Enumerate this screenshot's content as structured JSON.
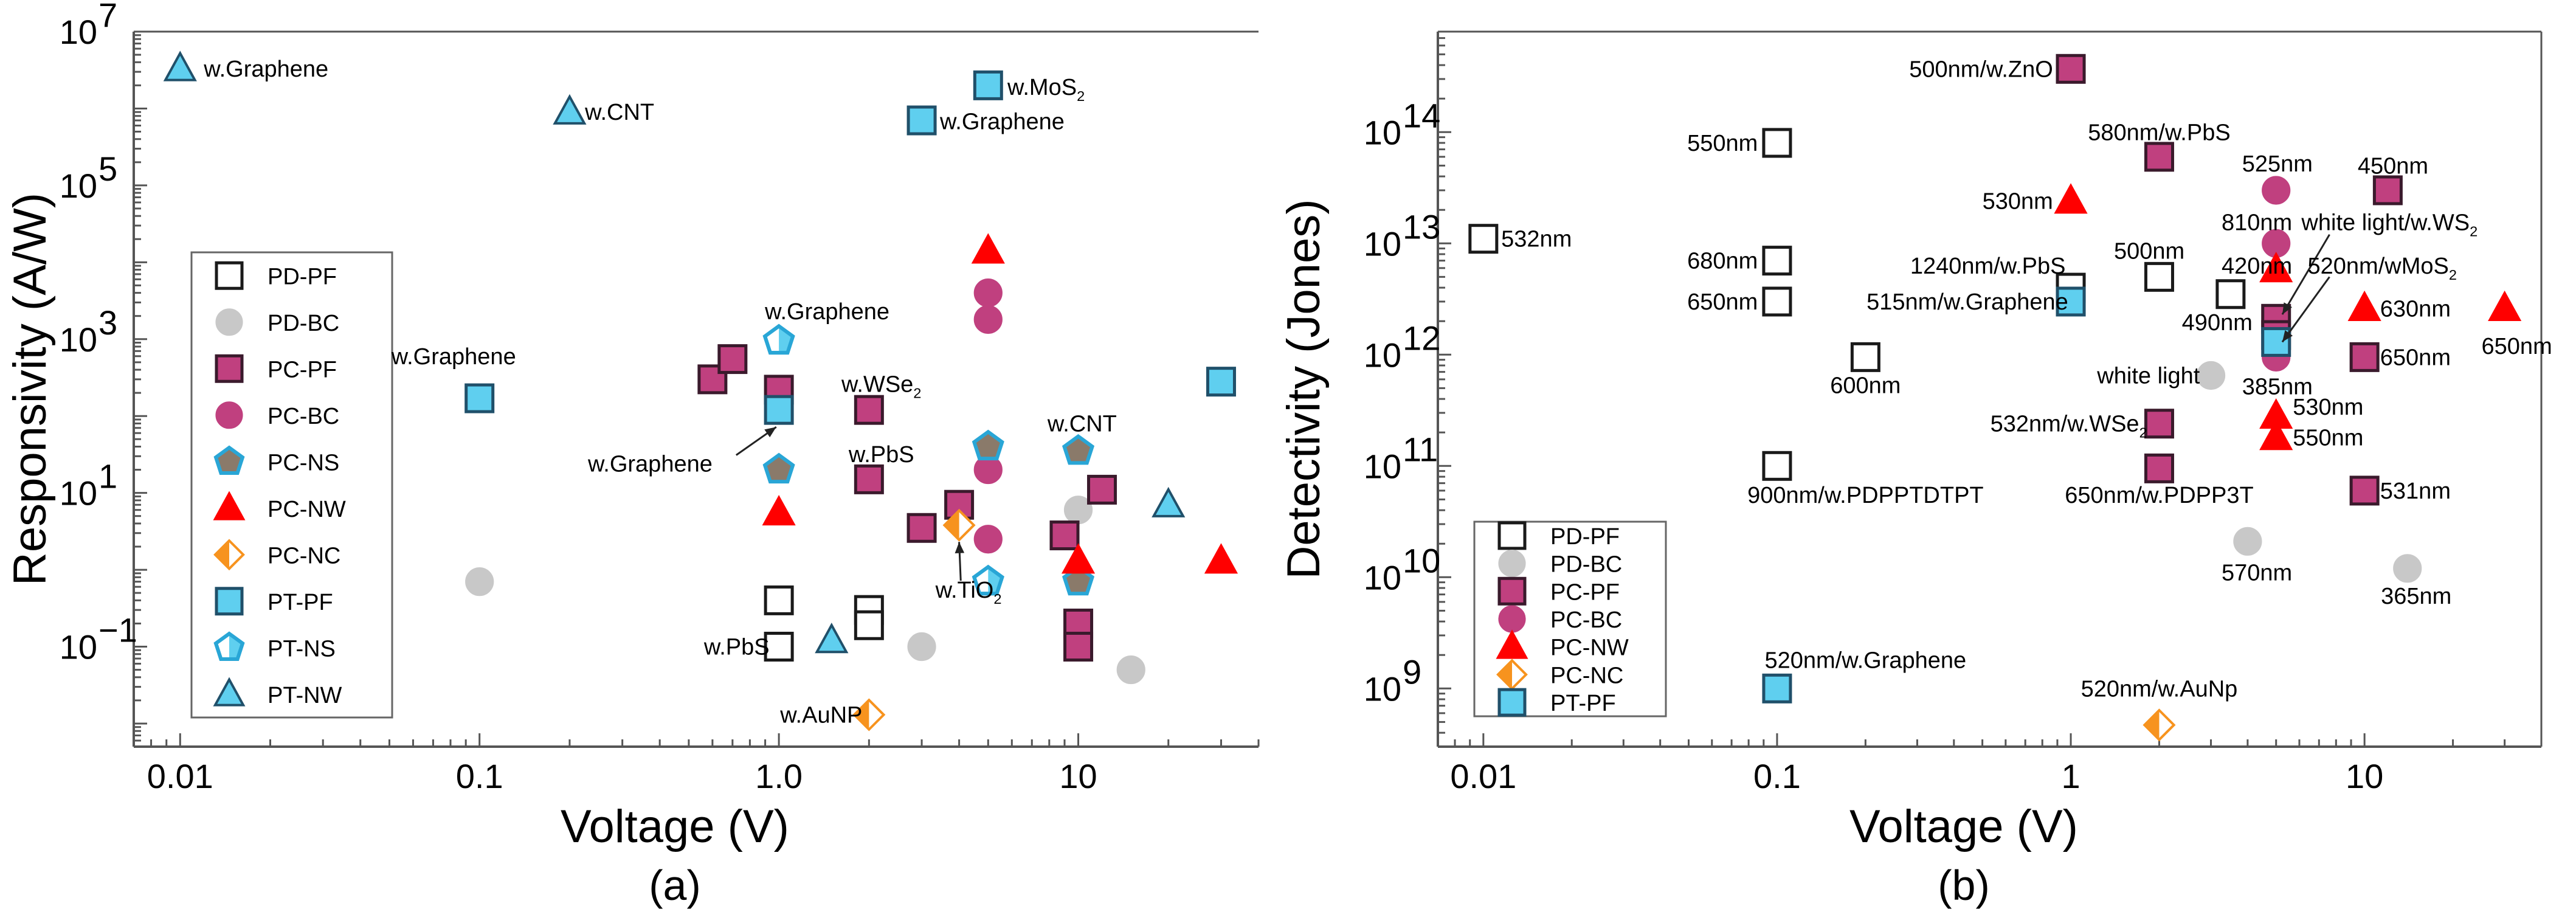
{
  "chart_data": [
    {
      "type": "scatter",
      "id": "a",
      "subtitle": "(a)",
      "xlabel": "Voltage (V)",
      "ylabel": "Responsivity (A/W)",
      "xscale": "log",
      "yscale": "log",
      "xlim": [
        0.007,
        40
      ],
      "ylim": [
        0.005,
        10000000
      ],
      "xticks": [
        0.01,
        0.1,
        1.0,
        10
      ],
      "xtick_labels": [
        "0.01",
        "0.1",
        "1.0",
        "10"
      ],
      "yticks": [
        0.1,
        10,
        1000,
        100000,
        10000000
      ],
      "ytick_labels": [
        [
          "10",
          "−1"
        ],
        [
          "10",
          "1"
        ],
        [
          "10",
          "3"
        ],
        [
          "10",
          "5"
        ],
        [
          "10",
          "7"
        ]
      ],
      "legend": {
        "position": "left",
        "entries": [
          {
            "label": "PD-PF",
            "key": "PD-PF"
          },
          {
            "label": "PD-BC",
            "key": "PD-BC"
          },
          {
            "label": "PC-PF",
            "key": "PC-PF"
          },
          {
            "label": "PC-BC",
            "key": "PC-BC"
          },
          {
            "label": "PC-NS",
            "key": "PC-NS"
          },
          {
            "label": "PC-NW",
            "key": "PC-NW"
          },
          {
            "label": "PC-NC",
            "key": "PC-NC"
          },
          {
            "label": "PT-PF",
            "key": "PT-PF"
          },
          {
            "label": "PT-NS",
            "key": "PT-NS"
          },
          {
            "label": "PT-NW",
            "key": "PT-NW"
          }
        ]
      },
      "points": [
        {
          "series": "PD-PF",
          "x": 1,
          "y": 0.4
        },
        {
          "series": "PD-PF",
          "x": 1,
          "y": 0.1
        },
        {
          "series": "PD-PF",
          "x": 2,
          "y": 0.3
        },
        {
          "series": "PD-PF",
          "x": 2,
          "y": 0.19
        },
        {
          "series": "PD-BC",
          "x": 0.1,
          "y": 0.7
        },
        {
          "series": "PD-BC",
          "x": 3,
          "y": 0.1
        },
        {
          "series": "PD-BC",
          "x": 10,
          "y": 6
        },
        {
          "series": "PD-BC",
          "x": 15,
          "y": 0.05
        },
        {
          "series": "PC-PF",
          "x": 0.6,
          "y": 300
        },
        {
          "series": "PC-PF",
          "x": 0.7,
          "y": 550
        },
        {
          "series": "PC-PF",
          "x": 1,
          "y": 220
        },
        {
          "series": "PC-PF",
          "x": 2,
          "y": 120
        },
        {
          "series": "PC-PF",
          "x": 2,
          "y": 15
        },
        {
          "series": "PC-PF",
          "x": 3,
          "y": 3.5
        },
        {
          "series": "PC-PF",
          "x": 4,
          "y": 7
        },
        {
          "series": "PC-PF",
          "x": 9,
          "y": 2.8
        },
        {
          "series": "PC-PF",
          "x": 10,
          "y": 0.2
        },
        {
          "series": "PC-PF",
          "x": 10,
          "y": 0.1
        },
        {
          "series": "PC-PF",
          "x": 12,
          "y": 11
        },
        {
          "series": "PC-BC",
          "x": 5,
          "y": 4000
        },
        {
          "series": "PC-BC",
          "x": 5,
          "y": 1800
        },
        {
          "series": "PC-BC",
          "x": 5,
          "y": 20
        },
        {
          "series": "PC-BC",
          "x": 5,
          "y": 2.5
        },
        {
          "series": "PC-NS",
          "x": 1,
          "y": 20
        },
        {
          "series": "PC-NS",
          "x": 5,
          "y": 40
        },
        {
          "series": "PC-NS",
          "x": 10,
          "y": 35
        },
        {
          "series": "PC-NS",
          "x": 10,
          "y": 0.7
        },
        {
          "series": "PC-NW",
          "x": 1,
          "y": 5.5
        },
        {
          "series": "PC-NW",
          "x": 5,
          "y": 14000
        },
        {
          "series": "PC-NW",
          "x": 10,
          "y": 1.3
        },
        {
          "series": "PC-NW",
          "x": 30,
          "y": 1.3
        },
        {
          "series": "PC-NC",
          "x": 4,
          "y": 3.8
        },
        {
          "series": "PC-NC",
          "x": 2,
          "y": 0.013
        },
        {
          "series": "PT-PF",
          "x": 0.1,
          "y": 170
        },
        {
          "series": "PT-PF",
          "x": 1,
          "y": 120
        },
        {
          "series": "PT-PF",
          "x": 3,
          "y": 700000
        },
        {
          "series": "PT-PF",
          "x": 5,
          "y": 2000000
        },
        {
          "series": "PT-PF",
          "x": 30,
          "y": 280
        },
        {
          "series": "PT-NS",
          "x": 1,
          "y": 950
        },
        {
          "series": "PT-NS",
          "x": 5,
          "y": 0.7
        },
        {
          "series": "PT-NW",
          "x": 0.01,
          "y": 3300000
        },
        {
          "series": "PT-NW",
          "x": 0.2,
          "y": 900000
        },
        {
          "series": "PT-NW",
          "x": 1.5,
          "y": 0.12
        },
        {
          "series": "PT-NW",
          "x": 20,
          "y": 7
        }
      ],
      "annotations": [
        {
          "text": "w.Graphene",
          "x": 0.012,
          "y": 3300000,
          "anchor": "start"
        },
        {
          "text": "w.CNT",
          "x": 0.225,
          "y": 900000,
          "anchor": "start"
        },
        {
          "text": "w.MoS",
          "sub": "2",
          "x": 5.8,
          "y": 1900000,
          "anchor": "start"
        },
        {
          "text": "w.Graphene",
          "x": 3.45,
          "y": 680000,
          "anchor": "start"
        },
        {
          "text": "w.Graphene",
          "x": 0.082,
          "y": 600,
          "anchor": "middle"
        },
        {
          "text": "w.Graphene",
          "x": 1.45,
          "y": 2300,
          "anchor": "middle"
        },
        {
          "text": "w.Graphene",
          "x": 0.6,
          "y": 24,
          "anchor": "end"
        },
        {
          "text": "w.WSe",
          "sub": "2",
          "x": 2.2,
          "y": 260,
          "anchor": "middle"
        },
        {
          "text": "w.PbS",
          "x": 2.2,
          "y": 32,
          "anchor": "middle"
        },
        {
          "text": "w.CNT",
          "x": 10.3,
          "y": 80,
          "anchor": "middle"
        },
        {
          "text": "w.TiO",
          "sub": "2",
          "x": 4.3,
          "y": 0.55,
          "anchor": "middle"
        },
        {
          "text": "w.PbS",
          "x": 0.93,
          "y": 0.1,
          "anchor": "end"
        },
        {
          "text": "w.AuNP",
          "x": 1.9,
          "y": 0.013,
          "anchor": "end"
        }
      ],
      "arrows": [
        {
          "from": [
            0.72,
            31
          ],
          "to": [
            0.98,
            72
          ]
        },
        {
          "from": [
            4.05,
            0.72
          ],
          "to": [
            4.0,
            2.3
          ]
        }
      ]
    },
    {
      "type": "scatter",
      "id": "b",
      "subtitle": "(b)",
      "xlabel": "Voltage (V)",
      "ylabel": "Detectivity (Jones)",
      "xscale": "log",
      "yscale": "log",
      "xlim": [
        0.007,
        40
      ],
      "ylim": [
        300000000,
        800000000000000
      ],
      "xticks": [
        0.01,
        0.1,
        1,
        10
      ],
      "xtick_labels": [
        "0.01",
        "0.1",
        "1",
        "10"
      ],
      "yticks": [
        1000000000,
        10000000000,
        100000000000,
        1000000000000,
        10000000000000,
        100000000000000
      ],
      "ytick_labels": [
        [
          "10",
          "9"
        ],
        [
          "10",
          "10"
        ],
        [
          "10",
          "11"
        ],
        [
          "10",
          "12"
        ],
        [
          "10",
          "13"
        ],
        [
          "10",
          "14"
        ]
      ],
      "legend": {
        "position": "bottom-left",
        "entries": [
          {
            "label": "PD-PF",
            "key": "PD-PF"
          },
          {
            "label": "PD-BC",
            "key": "PD-BC"
          },
          {
            "label": "PC-PF",
            "key": "PC-PF"
          },
          {
            "label": "PC-BC",
            "key": "PC-BC"
          },
          {
            "label": "PC-NW",
            "key": "PC-NW"
          },
          {
            "label": "PC-NC",
            "key": "PC-NC"
          },
          {
            "label": "PT-PF",
            "key": "PT-PF"
          }
        ]
      },
      "points": [
        {
          "series": "PD-PF",
          "x": 0.01,
          "y": 11000000000000
        },
        {
          "series": "PD-PF",
          "x": 0.1,
          "y": 80000000000000
        },
        {
          "series": "PD-PF",
          "x": 0.1,
          "y": 7000000000000
        },
        {
          "series": "PD-PF",
          "x": 0.1,
          "y": 3000000000000
        },
        {
          "series": "PD-PF",
          "x": 0.2,
          "y": 950000000000
        },
        {
          "series": "PD-PF",
          "x": 0.1,
          "y": 100000000000
        },
        {
          "series": "PD-PF",
          "x": 1,
          "y": 4000000000000
        },
        {
          "series": "PD-PF",
          "x": 2,
          "y": 5000000000000
        },
        {
          "series": "PD-PF",
          "x": 3.5,
          "y": 3500000000000
        },
        {
          "series": "PD-BC",
          "x": 3,
          "y": 650000000000
        },
        {
          "series": "PD-BC",
          "x": 4,
          "y": 21000000000
        },
        {
          "series": "PD-BC",
          "x": 14,
          "y": 12000000000
        },
        {
          "series": "PC-PF",
          "x": 1,
          "y": 370000000000000
        },
        {
          "series": "PC-PF",
          "x": 2,
          "y": 60000000000000
        },
        {
          "series": "PC-PF",
          "x": 5,
          "y": 2100000000000
        },
        {
          "series": "PC-PF",
          "x": 5,
          "y": 1500000000000
        },
        {
          "series": "PC-PF",
          "x": 2,
          "y": 240000000000
        },
        {
          "series": "PC-PF",
          "x": 2,
          "y": 95000000000
        },
        {
          "series": "PC-PF",
          "x": 12,
          "y": 30000000000000
        },
        {
          "series": "PC-PF",
          "x": 10,
          "y": 950000000000
        },
        {
          "series": "PC-PF",
          "x": 10,
          "y": 60000000000
        },
        {
          "series": "PC-BC",
          "x": 5,
          "y": 30000000000000
        },
        {
          "series": "PC-BC",
          "x": 5,
          "y": 10000000000000
        },
        {
          "series": "PC-BC",
          "x": 5,
          "y": 950000000000
        },
        {
          "series": "PC-NW",
          "x": 1,
          "y": 24000000000000
        },
        {
          "series": "PC-NW",
          "x": 5,
          "y": 5800000000000
        },
        {
          "series": "PC-NW",
          "x": 5,
          "y": 280000000000
        },
        {
          "series": "PC-NW",
          "x": 5,
          "y": 180000000000
        },
        {
          "series": "PC-NW",
          "x": 10,
          "y": 2600000000000
        },
        {
          "series": "PC-NW",
          "x": 30,
          "y": 2600000000000
        },
        {
          "series": "PC-NC",
          "x": 2,
          "y": 470000000
        },
        {
          "series": "PT-PF",
          "x": 1,
          "y": 3000000000000
        },
        {
          "series": "PT-PF",
          "x": 5,
          "y": 1300000000000
        },
        {
          "series": "PT-PF",
          "x": 0.1,
          "y": 1000000000
        }
      ],
      "annotations": [
        {
          "text": "532nm",
          "x": 0.0115,
          "y": 11000000000000,
          "anchor": "start"
        },
        {
          "text": "550nm",
          "x": 0.086,
          "y": 80000000000000,
          "anchor": "end"
        },
        {
          "text": "680nm",
          "x": 0.086,
          "y": 7000000000000,
          "anchor": "end"
        },
        {
          "text": "650nm",
          "x": 0.086,
          "y": 3000000000000,
          "anchor": "end"
        },
        {
          "text": "600nm",
          "x": 0.2,
          "y": 530000000000,
          "anchor": "middle"
        },
        {
          "text": "900nm/w.PDPPTDTPT",
          "x": 0.2,
          "y": 55000000000,
          "anchor": "middle"
        },
        {
          "text": "520nm/w.Graphene",
          "x": 0.2,
          "y": 1800000000,
          "anchor": "middle"
        },
        {
          "text": "500nm/w.ZnO",
          "x": 0.87,
          "y": 370000000000000,
          "anchor": "end"
        },
        {
          "text": "580nm/w.PbS",
          "x": 2.0,
          "y": 100000000000000,
          "anchor": "middle"
        },
        {
          "text": "530nm",
          "x": 0.87,
          "y": 24000000000000,
          "anchor": "end"
        },
        {
          "text": "525nm",
          "x": 5.05,
          "y": 52000000000000,
          "anchor": "middle"
        },
        {
          "text": "810nm",
          "x": 4.3,
          "y": 15500000000000,
          "anchor": "middle"
        },
        {
          "text": "420nm",
          "x": 4.3,
          "y": 6300000000000,
          "anchor": "middle"
        },
        {
          "text": "500nm",
          "x": 1.85,
          "y": 8600000000000,
          "anchor": "middle"
        },
        {
          "text": "1240nm/w.PbS",
          "x": 0.96,
          "y": 6300000000000,
          "anchor": "end"
        },
        {
          "text": "515nm/w.Graphene",
          "x": 0.98,
          "y": 3000000000000,
          "anchor": "end"
        },
        {
          "text": "490nm",
          "x": 3.15,
          "y": 1950000000000,
          "anchor": "middle"
        },
        {
          "text": "white light",
          "x": 2.75,
          "y": 650000000000,
          "anchor": "end"
        },
        {
          "text": "385nm",
          "x": 5.05,
          "y": 520000000000,
          "anchor": "middle"
        },
        {
          "text": "450nm",
          "x": 12.5,
          "y": 50000000000000,
          "anchor": "middle"
        },
        {
          "text": "white light/w.WS",
          "sub": "2",
          "x": 6.1,
          "y": 15500000000000,
          "anchor": "start"
        },
        {
          "text": "520nm/wMoS",
          "sub": "2",
          "x": 6.4,
          "y": 6300000000000,
          "anchor": "start"
        },
        {
          "text": "630nm",
          "x": 11.3,
          "y": 2600000000000,
          "anchor": "start"
        },
        {
          "text": "650nm",
          "x": 11.3,
          "y": 950000000000,
          "anchor": "start"
        },
        {
          "text": "650nm",
          "x": 33,
          "y": 1200000000000,
          "anchor": "middle"
        },
        {
          "text": "530nm",
          "x": 5.7,
          "y": 340000000000,
          "anchor": "start"
        },
        {
          "text": "550nm",
          "x": 5.7,
          "y": 180000000000,
          "anchor": "start"
        },
        {
          "text": "531nm",
          "x": 11.3,
          "y": 60000000000,
          "anchor": "start"
        },
        {
          "text": "532nm/w.WSe",
          "sub": "2",
          "x": 1.82,
          "y": 240000000000,
          "anchor": "end"
        },
        {
          "text": "650nm/w.PDPP3T",
          "x": 2.0,
          "y": 55000000000,
          "anchor": "middle"
        },
        {
          "text": "570nm",
          "x": 4.3,
          "y": 11000000000,
          "anchor": "middle"
        },
        {
          "text": "365nm",
          "x": 15,
          "y": 6800000000,
          "anchor": "middle"
        },
        {
          "text": "520nm/w.AuNp",
          "x": 2.0,
          "y": 1000000000,
          "anchor": "middle"
        }
      ],
      "arrows": [
        {
          "from": [
            7.6,
            12000000000000
          ],
          "to": [
            5.25,
            2300000000000
          ]
        },
        {
          "from": [
            7.6,
            5000000000000
          ],
          "to": [
            5.25,
            1300000000000
          ]
        }
      ]
    }
  ],
  "colors": {
    "magenta": "#c0407f",
    "magenta_edge": "#3a1a2c",
    "circle_magenta": "#c0407f",
    "red": "#ff0000",
    "orange": "#f7931e",
    "cyan": "#5fcfef",
    "cyan_edge": "#20506a",
    "grey": "#c8c8c8",
    "ns_fill": "#8a7a6a",
    "ns_edge": "#29a6d6",
    "black": "#000000"
  }
}
